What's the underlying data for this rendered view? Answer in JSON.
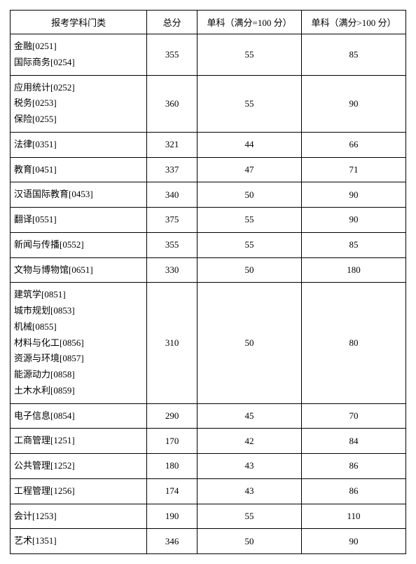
{
  "table": {
    "columns": [
      "报考学科门类",
      "总分",
      "单科（满分=100 分）",
      "单科（满分>100 分）"
    ],
    "rows": [
      {
        "category": [
          "金融[0251]",
          "国际商务[0254]"
        ],
        "total": "355",
        "sub100": "55",
        "subOver100": "85"
      },
      {
        "category": [
          "应用统计[0252]",
          "税务[0253]",
          "保险[0255]"
        ],
        "total": "360",
        "sub100": "55",
        "subOver100": "90"
      },
      {
        "category": [
          "法律[0351]"
        ],
        "total": "321",
        "sub100": "44",
        "subOver100": "66"
      },
      {
        "category": [
          "教育[0451]"
        ],
        "total": "337",
        "sub100": "47",
        "subOver100": "71"
      },
      {
        "category": [
          "汉语国际教育[0453]"
        ],
        "total": "340",
        "sub100": "50",
        "subOver100": "90"
      },
      {
        "category": [
          "翻译[0551]"
        ],
        "total": "375",
        "sub100": "55",
        "subOver100": "90"
      },
      {
        "category": [
          "新闻与传播[0552]"
        ],
        "total": "355",
        "sub100": "55",
        "subOver100": "85"
      },
      {
        "category": [
          "文物与博物馆[0651]"
        ],
        "total": "330",
        "sub100": "50",
        "subOver100": "180"
      },
      {
        "category": [
          "建筑学[0851]",
          "城市规划[0853]",
          "机械[0855]",
          "材料与化工[0856]",
          "资源与环境[0857]",
          "能源动力[0858]",
          "土木水利[0859]"
        ],
        "total": "310",
        "sub100": "50",
        "subOver100": "80"
      },
      {
        "category": [
          "电子信息[0854]"
        ],
        "total": "290",
        "sub100": "45",
        "subOver100": "70"
      },
      {
        "category": [
          "工商管理[1251]"
        ],
        "total": "170",
        "sub100": "42",
        "subOver100": "84"
      },
      {
        "category": [
          "公共管理[1252]"
        ],
        "total": "180",
        "sub100": "43",
        "subOver100": "86"
      },
      {
        "category": [
          "工程管理[1256]"
        ],
        "total": "174",
        "sub100": "43",
        "subOver100": "86"
      },
      {
        "category": [
          "会计[1253]"
        ],
        "total": "190",
        "sub100": "55",
        "subOver100": "110"
      },
      {
        "category": [
          "艺术[1351]"
        ],
        "total": "346",
        "sub100": "50",
        "subOver100": "90"
      }
    ]
  }
}
